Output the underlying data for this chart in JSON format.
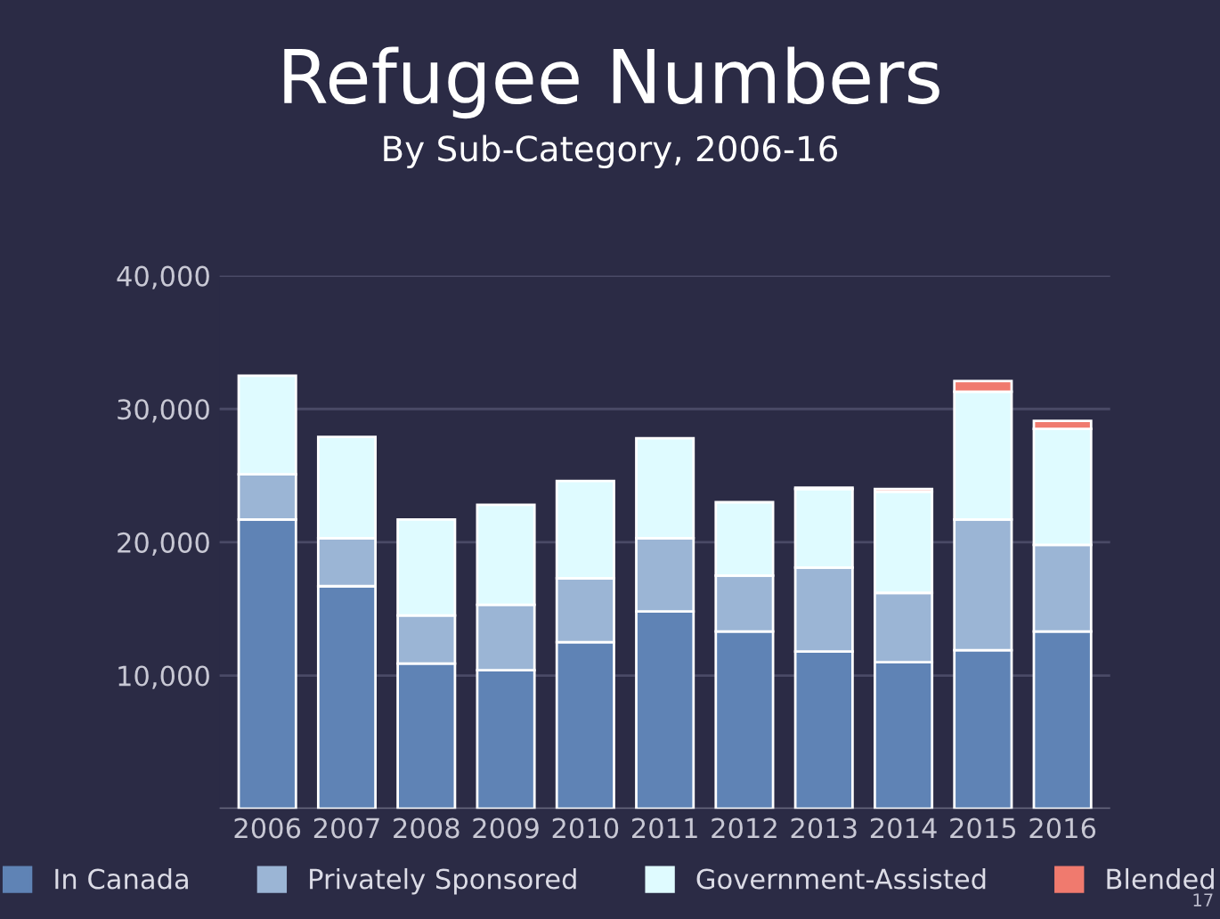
{
  "chart_data": {
    "type": "bar",
    "title": "Refugee Numbers",
    "subtitle": "By Sub-Category, 2006-16",
    "categories": [
      "2006",
      "2007",
      "2008",
      "2009",
      "2010",
      "2011",
      "2012",
      "2013",
      "2014",
      "2015",
      "2016"
    ],
    "stacked": true,
    "series": [
      {
        "name": "In Canada",
        "color": "#5f83b5",
        "values": [
          21700,
          16700,
          10900,
          10400,
          12500,
          14800,
          13300,
          11800,
          11000,
          11900,
          13300
        ]
      },
      {
        "name": "Privately Sponsored",
        "color": "#9bb5d5",
        "values": [
          3400,
          3600,
          3600,
          4900,
          4800,
          5500,
          4200,
          6300,
          5200,
          9800,
          6500
        ]
      },
      {
        "name": "Government-Assisted",
        "color": "#dffbff",
        "values": [
          7400,
          7600,
          7200,
          7500,
          7300,
          7500,
          5500,
          5900,
          7600,
          9600,
          8700
        ]
      },
      {
        "name": "Blended",
        "color": "#f07a6e",
        "values": [
          null,
          null,
          null,
          null,
          null,
          null,
          null,
          100,
          200,
          800,
          600
        ]
      }
    ],
    "ylim": [
      0,
      40000
    ],
    "yticks": [
      {
        "value": 10000,
        "label": "10,000"
      },
      {
        "value": 20000,
        "label": "20,000"
      },
      {
        "value": 30000,
        "label": "30,000"
      },
      {
        "value": 40000,
        "label": "40,000"
      }
    ],
    "grid": "y",
    "legend": "bottom",
    "annotations": [
      "17"
    ]
  }
}
